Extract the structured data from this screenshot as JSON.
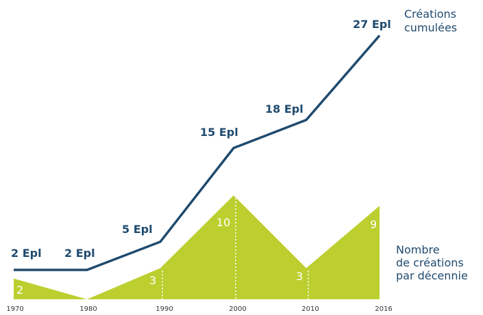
{
  "chart_data": {
    "type": "line",
    "x": [
      "1970",
      "1980",
      "1990",
      "2000",
      "2010",
      "2016"
    ],
    "series": [
      {
        "name": "Créations cumulées",
        "values": [
          2,
          2,
          5,
          15,
          18,
          27
        ],
        "labels": [
          "2 Epl",
          "2 Epl",
          "5 Epl",
          "15 Epl",
          "18 Epl",
          "27 Epl"
        ],
        "color": "#1f4a6e"
      },
      {
        "name": "Nombre de créations par décennie",
        "chart_type": "area",
        "values": [
          2,
          0,
          3,
          10,
          3,
          9
        ],
        "labels": [
          "2",
          "",
          "3",
          "10",
          "3",
          "9"
        ],
        "color": "#bccf2f"
      }
    ],
    "legend": {
      "cumulative": [
        "Créations",
        "cumulées"
      ],
      "decade": [
        "Nombre",
        "de créations",
        "par décennie"
      ]
    },
    "grid": false
  }
}
